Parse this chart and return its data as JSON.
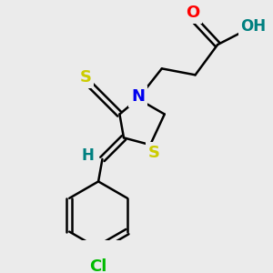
{
  "bg_color": "#ebebeb",
  "atom_colors": {
    "C": "#000000",
    "N": "#0000ee",
    "O_red": "#ff0000",
    "O_teal": "#008080",
    "S": "#cccc00",
    "Cl": "#00bb00",
    "H": "#008080"
  },
  "bond_color": "#000000",
  "bond_width": 1.8,
  "font_size_atom": 13,
  "figsize": [
    3.0,
    3.0
  ],
  "dpi": 100
}
